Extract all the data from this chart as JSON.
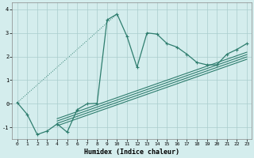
{
  "xlabel": "Humidex (Indice chaleur)",
  "background_color": "#d4eded",
  "line_color": "#2e7d6e",
  "grid_color": "#aacccc",
  "xlim": [
    -0.5,
    23.5
  ],
  "ylim": [
    -1.5,
    4.3
  ],
  "yticks": [
    -1,
    0,
    1,
    2,
    3,
    4
  ],
  "xticks": [
    0,
    1,
    2,
    3,
    4,
    5,
    6,
    7,
    8,
    9,
    10,
    11,
    12,
    13,
    14,
    15,
    16,
    17,
    18,
    19,
    20,
    21,
    22,
    23
  ],
  "main_x": [
    0,
    1,
    2,
    3,
    4,
    5,
    6,
    7,
    8,
    9,
    10,
    11,
    12,
    13,
    14,
    15,
    16,
    17,
    18,
    19,
    20,
    21,
    22,
    23
  ],
  "main_y": [
    0.05,
    -0.45,
    -1.3,
    -1.15,
    -0.85,
    -1.2,
    -0.25,
    0.0,
    0.02,
    3.55,
    3.8,
    2.85,
    1.55,
    3.0,
    2.95,
    2.55,
    2.4,
    2.1,
    1.75,
    1.65,
    1.65,
    2.1,
    2.3,
    2.55
  ],
  "reg_x_start": 4,
  "reg_x_end": 23,
  "reg_lines": [
    {
      "slope": 0.148,
      "intercept": -1.52
    },
    {
      "slope": 0.148,
      "intercept": -1.42
    },
    {
      "slope": 0.148,
      "intercept": -1.32
    },
    {
      "slope": 0.148,
      "intercept": -1.22
    }
  ]
}
